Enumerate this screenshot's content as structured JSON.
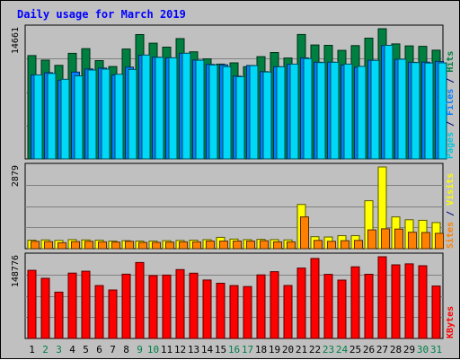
{
  "chart_data": {
    "type": "bar",
    "title": "Daily usage for March 2019",
    "categories": [
      "1",
      "2",
      "3",
      "4",
      "5",
      "6",
      "7",
      "8",
      "9",
      "10",
      "11",
      "12",
      "13",
      "14",
      "15",
      "16",
      "17",
      "18",
      "19",
      "20",
      "21",
      "22",
      "23",
      "24",
      "25",
      "26",
      "27",
      "28",
      "29",
      "30",
      "31"
    ],
    "weekend_days": [
      "2",
      "3",
      "9",
      "10",
      "16",
      "17",
      "23",
      "24",
      "30",
      "31"
    ],
    "panels": [
      {
        "name": "hits-panel",
        "max_label": "14661",
        "ymax": 14661,
        "axis_labels": [
          {
            "text": "Pages",
            "color": "#00c8e0"
          },
          {
            "text": " / ",
            "color": "#000080"
          },
          {
            "text": "Files",
            "color": "#0080ff"
          },
          {
            "text": " / ",
            "color": "#000080"
          },
          {
            "text": "Hits",
            "color": "#008040"
          }
        ],
        "series": [
          {
            "name": "Hits",
            "color": "#008040",
            "values": [
              11640,
              11120,
              10540,
              11890,
              12420,
              11070,
              10400,
              12380,
              14000,
              13030,
              12590,
              13550,
              12060,
              11260,
              10680,
              10820,
              10380,
              11520,
              11980,
              11360,
              14010,
              12830,
              12790,
              12220,
              12760,
              13600,
              14661,
              12950,
              12730,
              12680,
              12240
            ]
          },
          {
            "name": "Files",
            "color": "#0080ff",
            "values": [
              9450,
              9720,
              8860,
              9780,
              10130,
              10230,
              9450,
              10330,
              11680,
              11460,
              11390,
              11890,
              11130,
              10650,
              10600,
              9320,
              10530,
              9830,
              10380,
              10670,
              11370,
              10890,
              10890,
              10580,
              10320,
              11110,
              12780,
              11210,
              10880,
              10900,
              10980
            ]
          },
          {
            "name": "Pages",
            "color": "#00d8f8",
            "values": [
              9460,
              9630,
              8970,
              9350,
              10010,
              10110,
              9530,
              10070,
              11700,
              11440,
              11390,
              11900,
              11110,
              10590,
              10390,
              9260,
              10510,
              9790,
              10370,
              10680,
              11300,
              10850,
              10880,
              10680,
              10420,
              11090,
              12790,
              11220,
              10850,
              10800,
              10820
            ]
          }
        ]
      },
      {
        "name": "visits-panel",
        "max_label": "2879",
        "ymax": 2879,
        "axis_labels": [
          {
            "text": "Sites",
            "color": "#ff8000"
          },
          {
            "text": " / ",
            "color": "#000080"
          },
          {
            "text": "Visits",
            "color": "#ffff00"
          }
        ],
        "series": [
          {
            "name": "Visits",
            "color": "#ffff00",
            "values": [
              300,
              310,
              290,
              320,
              310,
              300,
              270,
              280,
              270,
              270,
              280,
              290,
              300,
              320,
              400,
              340,
              320,
              330,
              320,
              310,
              1560,
              420,
              410,
              460,
              460,
              1690,
              2879,
              1120,
              1020,
              1000,
              920
            ]
          },
          {
            "name": "Sites",
            "color": "#ff8000",
            "values": [
              260,
              250,
              210,
              250,
              260,
              240,
              230,
              260,
              220,
              220,
              230,
              240,
              240,
              270,
              270,
              270,
              270,
              280,
              240,
              240,
              1120,
              290,
              260,
              280,
              290,
              660,
              700,
              690,
              580,
              570,
              540
            ]
          }
        ]
      },
      {
        "name": "kbytes-panel",
        "max_label": "148776",
        "ymax": 148776,
        "axis_labels": [
          {
            "text": "KBytes",
            "color": "#ff0000"
          }
        ],
        "series": [
          {
            "name": "KBytes",
            "color": "#ff0000",
            "values": [
              124100,
              109500,
              84300,
              119000,
              122500,
              96300,
              88300,
              117100,
              138300,
              114500,
              115500,
              125400,
              118800,
              106400,
              100500,
              96300,
              94500,
              115800,
              121700,
              96500,
              128200,
              145700,
              116800,
              106300,
              130500,
              116900,
              148776,
              134100,
              135800,
              132500,
              95500
            ]
          }
        ]
      }
    ]
  }
}
